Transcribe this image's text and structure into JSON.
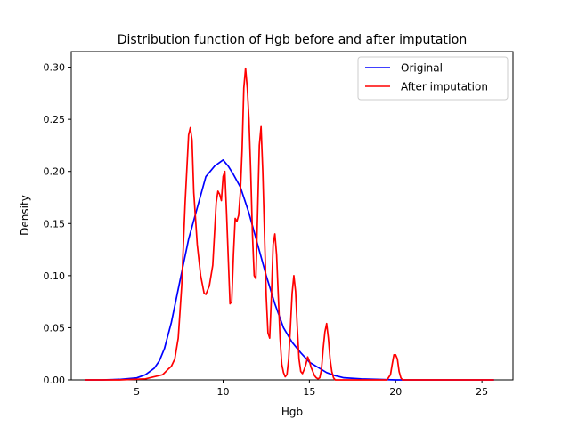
{
  "chart_data": {
    "type": "line",
    "title": "Distribution function of Hgb before and after imputation",
    "xlabel": "Hgb",
    "ylabel": "Density",
    "xlim": [
      1.2,
      26.8
    ],
    "ylim": [
      0,
      0.315
    ],
    "xticks": [
      5,
      10,
      15,
      20,
      25
    ],
    "yticks": [
      0.0,
      0.05,
      0.1,
      0.15,
      0.2,
      0.25,
      0.3
    ],
    "ytick_labels": [
      "0.00",
      "0.05",
      "0.10",
      "0.15",
      "0.20",
      "0.25",
      "0.30"
    ],
    "grid": false,
    "legend_position": "top-right",
    "series": [
      {
        "name": "Original",
        "color": "#0000ff",
        "x": [
          2.0,
          3.0,
          4.0,
          5.0,
          5.5,
          6.0,
          6.3,
          6.6,
          7.0,
          7.5,
          8.0,
          8.5,
          9.0,
          9.5,
          10.0,
          10.3,
          10.6,
          11.0,
          11.5,
          12.0,
          12.5,
          13.0,
          13.5,
          14.0,
          14.5,
          15.0,
          15.5,
          16.0,
          16.5,
          17.0,
          18.0,
          20.0,
          22.0,
          25.7
        ],
        "y": [
          0.0,
          0.0,
          0.0005,
          0.002,
          0.005,
          0.011,
          0.018,
          0.03,
          0.055,
          0.095,
          0.135,
          0.165,
          0.195,
          0.205,
          0.211,
          0.205,
          0.197,
          0.185,
          0.16,
          0.13,
          0.1,
          0.073,
          0.05,
          0.036,
          0.026,
          0.017,
          0.012,
          0.007,
          0.004,
          0.002,
          0.001,
          0.0,
          0.0,
          0.0
        ]
      },
      {
        "name": "After imputation",
        "color": "#ff0000",
        "x": [
          2.0,
          4.0,
          5.5,
          6.5,
          6.8,
          7.0,
          7.2,
          7.4,
          7.6,
          7.8,
          8.0,
          8.1,
          8.2,
          8.3,
          8.5,
          8.7,
          8.9,
          9.0,
          9.2,
          9.4,
          9.6,
          9.7,
          9.8,
          9.9,
          10.0,
          10.1,
          10.2,
          10.4,
          10.5,
          10.6,
          10.7,
          10.8,
          10.9,
          11.0,
          11.1,
          11.2,
          11.3,
          11.4,
          11.5,
          11.6,
          11.7,
          11.8,
          11.9,
          12.0,
          12.1,
          12.2,
          12.3,
          12.4,
          12.5,
          12.6,
          12.7,
          12.8,
          12.9,
          13.0,
          13.1,
          13.2,
          13.3,
          13.4,
          13.5,
          13.6,
          13.7,
          13.8,
          13.9,
          14.0,
          14.1,
          14.2,
          14.3,
          14.4,
          14.5,
          14.6,
          14.7,
          14.8,
          14.9,
          15.0,
          15.1,
          15.2,
          15.3,
          15.4,
          15.5,
          15.6,
          15.7,
          15.8,
          15.9,
          16.0,
          16.1,
          16.2,
          16.3,
          16.4,
          16.5,
          16.6,
          16.7,
          16.8,
          17.0,
          18.0,
          19.0,
          19.5,
          19.7,
          19.8,
          19.9,
          20.0,
          20.1,
          20.2,
          20.3,
          20.4,
          20.6,
          21.0,
          23.0,
          25.7
        ],
        "y": [
          0.0,
          0.0,
          0.001,
          0.005,
          0.01,
          0.013,
          0.02,
          0.04,
          0.09,
          0.17,
          0.235,
          0.242,
          0.23,
          0.18,
          0.13,
          0.1,
          0.083,
          0.082,
          0.09,
          0.11,
          0.17,
          0.181,
          0.178,
          0.172,
          0.195,
          0.2,
          0.16,
          0.073,
          0.075,
          0.12,
          0.155,
          0.152,
          0.158,
          0.18,
          0.22,
          0.28,
          0.299,
          0.28,
          0.25,
          0.2,
          0.14,
          0.1,
          0.097,
          0.16,
          0.225,
          0.243,
          0.2,
          0.14,
          0.08,
          0.045,
          0.04,
          0.08,
          0.13,
          0.14,
          0.12,
          0.08,
          0.04,
          0.015,
          0.007,
          0.003,
          0.005,
          0.02,
          0.05,
          0.083,
          0.1,
          0.085,
          0.05,
          0.02,
          0.008,
          0.006,
          0.01,
          0.015,
          0.022,
          0.018,
          0.012,
          0.008,
          0.004,
          0.002,
          0.001,
          0.002,
          0.01,
          0.03,
          0.046,
          0.054,
          0.04,
          0.02,
          0.008,
          0.002,
          0.0,
          0.0,
          0.0,
          0.0,
          0.0,
          0.0,
          0.0,
          0.0,
          0.005,
          0.015,
          0.024,
          0.024,
          0.02,
          0.008,
          0.002,
          0.0,
          0.0,
          0.0,
          0.0,
          0.0
        ]
      }
    ]
  }
}
